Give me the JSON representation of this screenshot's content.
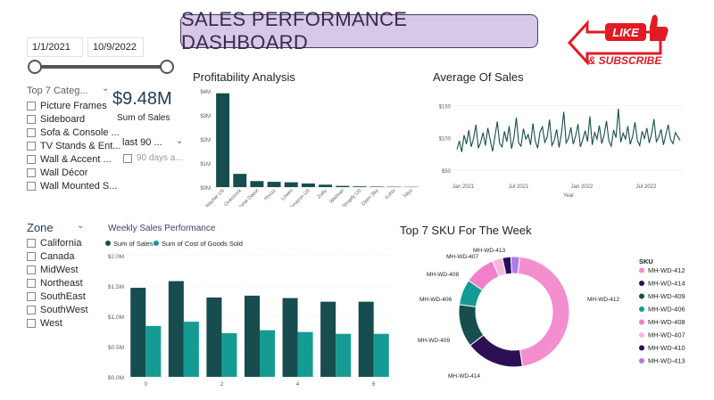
{
  "title": "SALES PERFORMANCE DASHBOARD",
  "date_slicer": {
    "start": "1/1/2021",
    "end": "10/9/2022"
  },
  "category_slicer": {
    "header": "Top 7 Categ...",
    "items": [
      "Picture Frames",
      "Sideboard",
      "Sofa & Console ...",
      "TV Stands & Ent...",
      "Wall & Accent ...",
      "Wall Décor",
      "Wall Mounted S..."
    ]
  },
  "kpi": {
    "value": "$9.48M",
    "label": "Sum of Sales"
  },
  "relative_date": {
    "value": "last 90 ...",
    "option": "90 days a..."
  },
  "zone_slicer": {
    "header": "Zone",
    "items": [
      "California",
      "Canada",
      "MidWest",
      "Northeast",
      "SouthEast",
      "SouthWest",
      "West"
    ]
  },
  "logo": {
    "line1": "LIKE",
    "line2": "& SUBSCRIBE"
  },
  "colors": {
    "dark_teal": "#174d4f",
    "teal": "#159b93",
    "pink": "#f48ecf",
    "purple": "#2d0f54",
    "title_bg": "#d7c7e8"
  },
  "chart_data": [
    {
      "id": "profitability",
      "type": "bar",
      "title": "Profitability Analysis",
      "categories": [
        "Wayfair US",
        "Overstock",
        "Home Depot",
        "Houzz",
        "Lowes",
        "Amazon US",
        "Zulily",
        "Walmart",
        "Shopify US",
        "Open Sky",
        "Kohls",
        "Tillys"
      ],
      "values": [
        3.9,
        0.55,
        0.25,
        0.22,
        0.2,
        0.15,
        0.1,
        0.05,
        0.03,
        0.02,
        0.015,
        0.01
      ],
      "y_ticks": [
        "$0M",
        "$1M",
        "$2M",
        "$3M",
        "$4M"
      ],
      "ylim": [
        0,
        4
      ],
      "unit": "$M"
    },
    {
      "id": "average_of_sales",
      "type": "line",
      "title": "Average Of Sales",
      "xlabel": "Year",
      "x_ticks": [
        "Jan 2021",
        "Jul 2021",
        "Jan 2022",
        "Jul 2022"
      ],
      "y_ticks": [
        "$50",
        "$100",
        "$150"
      ],
      "ylim": [
        50,
        160
      ],
      "x_range": [
        "2021-01-01",
        "2022-10-09"
      ],
      "values": [
        82,
        95,
        78,
        104,
        90,
        112,
        86,
        99,
        120,
        84,
        93,
        108,
        88,
        115,
        97,
        79,
        102,
        125,
        91,
        86,
        110,
        94,
        118,
        83,
        100,
        131,
        92,
        87,
        114,
        98,
        105,
        89,
        122,
        95,
        84,
        109,
        117,
        93,
        101,
        128,
        88,
        96,
        113,
        85,
        106,
        140,
        92,
        99,
        116,
        90,
        103,
        121,
        86,
        97,
        111,
        94,
        133,
        89,
        108,
        98,
        119,
        91,
        104,
        126,
        95,
        87,
        112,
        100,
        145,
        93,
        107,
        98,
        118,
        90,
        102,
        124,
        96,
        88,
        110,
        99,
        115,
        92,
        106,
        129,
        94,
        101,
        113,
        89,
        105,
        120,
        97,
        91,
        108,
        102,
        96
      ]
    },
    {
      "id": "weekly_sales",
      "type": "bar",
      "title": "Weekly Sales Performance",
      "legend": [
        "Sum of Sales",
        "Sum of Cost of Goods Sold"
      ],
      "categories": [
        "0",
        "1",
        "2",
        "3",
        "4",
        "5",
        "6"
      ],
      "x_ticks": [
        "0",
        "2",
        "4",
        "6"
      ],
      "series": [
        {
          "name": "Sum of Sales",
          "values": [
            1.47,
            1.58,
            1.31,
            1.34,
            1.3,
            1.24,
            1.24
          ]
        },
        {
          "name": "Sum of Cost of Goods Sold",
          "values": [
            0.84,
            0.91,
            0.72,
            0.77,
            0.74,
            0.71,
            0.71
          ]
        }
      ],
      "y_ticks": [
        "$0.0M",
        "$0.5M",
        "$1.0M",
        "$1.5M",
        "$2.0M"
      ],
      "ylim": [
        0,
        2.0
      ]
    },
    {
      "id": "top7_sku",
      "type": "pie",
      "donut": true,
      "title": "Top 7 SKU For The Week",
      "legend_title": "SKU",
      "slices": [
        {
          "label": "MH-WD-412",
          "value": 46.0,
          "color": "#f48ecf"
        },
        {
          "label": "MH-WD-414",
          "value": 17.0,
          "color": "#2d0f54"
        },
        {
          "label": "MH-WD-409",
          "value": 12.5,
          "color": "#174d4f"
        },
        {
          "label": "MH-WD-406",
          "value": 7.5,
          "color": "#159b93"
        },
        {
          "label": "MH-WD-408",
          "value": 9.0,
          "color": "#f27fcb"
        },
        {
          "label": "MH-WD-407",
          "value": 3.0,
          "color": "#f7b6e0"
        },
        {
          "label": "MH-WD-410",
          "value": 2.5,
          "color": "#2a0d5a"
        },
        {
          "label": "MH-WD-413",
          "value": 2.5,
          "color": "#b07ae8"
        }
      ]
    }
  ]
}
